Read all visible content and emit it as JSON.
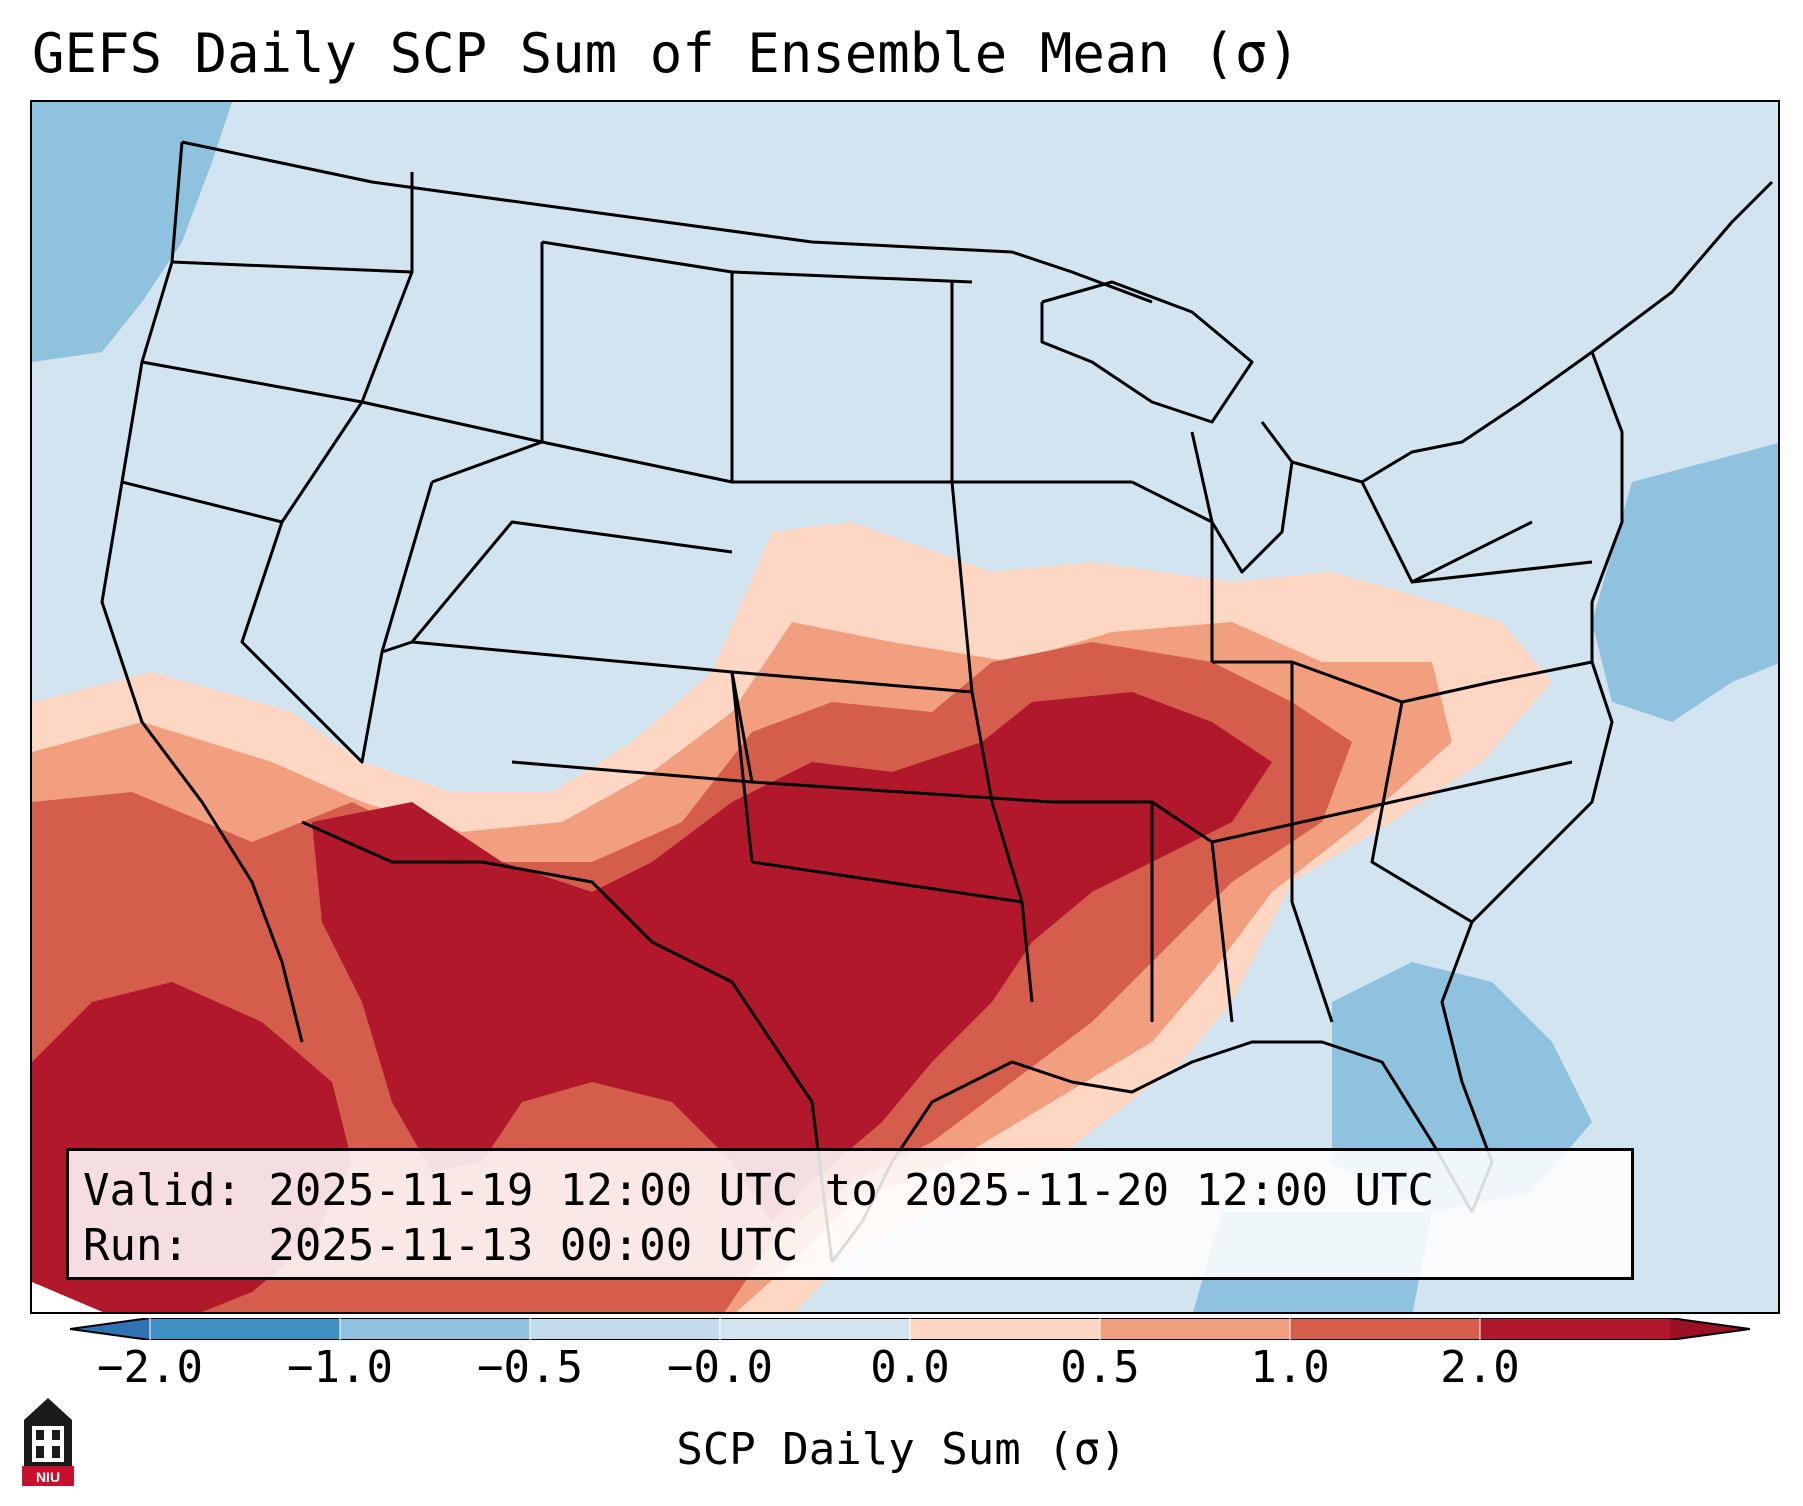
{
  "title": "GEFS Daily SCP Sum of Ensemble Mean (σ)",
  "info": {
    "valid_line": "Valid: 2025-11-19 12:00 UTC to 2025-11-20 12:00 UTC",
    "run_line": "Run:   2025-11-13 00:00 UTC"
  },
  "colorbar": {
    "label": "SCP Daily Sum (σ)",
    "ticks": [
      "−2.0",
      "−1.0",
      "−0.5",
      "−0.0",
      "0.0",
      "0.5",
      "1.0",
      "2.0"
    ],
    "colors": [
      "#3f8fc4",
      "#8ec2de",
      "#c4dcea",
      "#d2e4ef",
      "#fdd7c4",
      "#f19f7f",
      "#d55d4b",
      "#b2182b"
    ],
    "extend": "both"
  },
  "map": {
    "region": "Continental United States",
    "background_color": "#d2e4ef",
    "anomaly_colors": {
      "strong_positive": "#b2182b",
      "positive": "#d55d4b",
      "weak_positive": "#f19f7f",
      "slight_positive": "#fdd7c4",
      "slight_negative": "#8ec2de"
    }
  },
  "logo": {
    "text": "NIU",
    "color": "#c8102e"
  }
}
